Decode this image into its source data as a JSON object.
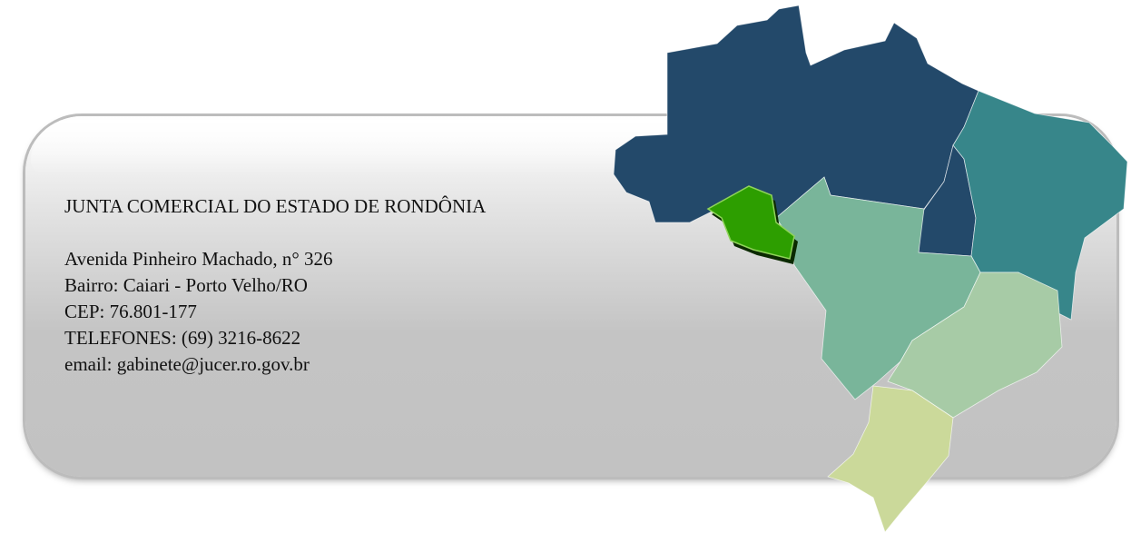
{
  "organization": {
    "name": "JUNTA COMERCIAL DO ESTADO DE RONDÔNIA",
    "address": "Avenida Pinheiro Machado, n° 326",
    "district": "Bairro: Caiari - Porto Velho/RO",
    "cep": "CEP: 76.801-177",
    "phones": "TELEFONES: (69) 3216-8622",
    "email": "email: gabinete@jucer.ro.gov.br"
  },
  "map": {
    "highlighted_state": "Rondônia",
    "colors": {
      "north": "#23496a",
      "northeast": "#37868a",
      "center_west": "#79b59a",
      "southeast": "#a7cba6",
      "south": "#cbd99a",
      "highlight": "#2d9e00"
    }
  }
}
